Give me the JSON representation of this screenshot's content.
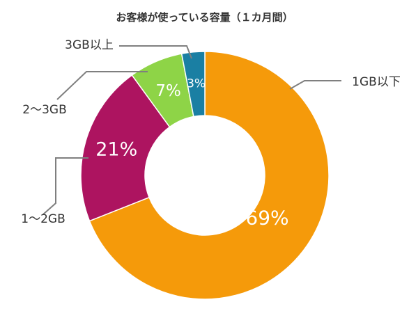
{
  "chart_data": {
    "type": "pie",
    "donut": true,
    "title": "お客様が使っている容量（１カ月間）",
    "categories": [
      "1GB以下",
      "1～2GB",
      "2～3GB",
      "3GB以上"
    ],
    "values": [
      69,
      21,
      7,
      3
    ],
    "value_labels": [
      "69%",
      "21%",
      "7%",
      "3%"
    ],
    "colors": [
      "#F59A0A",
      "#AD1460",
      "#8ED447",
      "#1A7FA3"
    ],
    "legend": "leader-lines"
  }
}
